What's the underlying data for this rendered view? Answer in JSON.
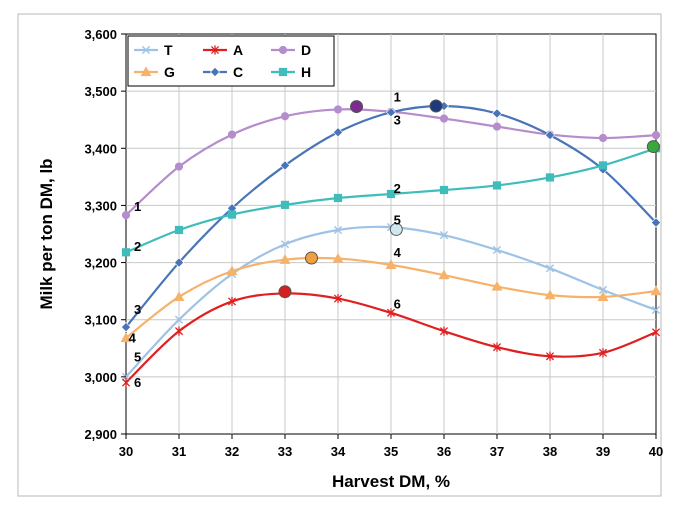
{
  "chart_data": {
    "type": "line",
    "title": "",
    "xlabel": "Harvest DM, %",
    "ylabel": "Milk per ton DM, lb",
    "xlim": [
      30,
      40
    ],
    "ylim": [
      2900,
      3600
    ],
    "x_ticks": [
      "30",
      "31",
      "32",
      "33",
      "34",
      "35",
      "36",
      "37",
      "38",
      "39",
      "40"
    ],
    "y_ticks": [
      "2,900",
      "3,000",
      "3,100",
      "3,200",
      "3,300",
      "3,400",
      "3,500",
      "3,600"
    ],
    "grid": true,
    "legend_position": "top-left",
    "x": [
      30,
      31,
      32,
      33,
      34,
      35,
      36,
      37,
      38,
      39,
      40
    ],
    "series": [
      {
        "name": "T",
        "color": "#9dc3e6",
        "marker": "x",
        "values": [
          3000,
          3100,
          3180,
          3232,
          3257,
          3262,
          3248,
          3222,
          3190,
          3152,
          3117
        ]
      },
      {
        "name": "A",
        "color": "#e02020",
        "marker": "star",
        "values": [
          2990,
          3080,
          3132,
          3146,
          3137,
          3112,
          3080,
          3052,
          3036,
          3042,
          3078
        ]
      },
      {
        "name": "D",
        "color": "#b58ccc",
        "marker": "circle",
        "values": [
          3283,
          3368,
          3424,
          3456,
          3468,
          3464,
          3452,
          3438,
          3424,
          3418,
          3423
        ]
      },
      {
        "name": "G",
        "color": "#f6b26b",
        "marker": "triangle",
        "values": [
          3068,
          3140,
          3185,
          3205,
          3207,
          3196,
          3178,
          3158,
          3143,
          3140,
          3150
        ]
      },
      {
        "name": "C",
        "color": "#4a74b8",
        "marker": "diamond",
        "values": [
          3087,
          3200,
          3295,
          3370,
          3428,
          3463,
          3474,
          3461,
          3423,
          3363,
          3270
        ]
      },
      {
        "name": "H",
        "color": "#3fbcbc",
        "marker": "square",
        "values": [
          3218,
          3257,
          3284,
          3301,
          3313,
          3320,
          3327,
          3335,
          3349,
          3370,
          3400
        ]
      }
    ],
    "highlight_points": [
      {
        "series": "D",
        "x": 34.35,
        "y": 3473,
        "color": "#7b2d8e"
      },
      {
        "series": "C",
        "x": 35.85,
        "y": 3474,
        "color": "#1f3a7a"
      },
      {
        "series": "H",
        "x": 39.95,
        "y": 3403,
        "color": "#3aa83a"
      },
      {
        "series": "T",
        "x": 35.1,
        "y": 3258,
        "color": "#cfe8ef"
      },
      {
        "series": "G",
        "x": 33.5,
        "y": 3208,
        "color": "#f0a040"
      },
      {
        "series": "A",
        "x": 33.0,
        "y": 3149,
        "color": "#d42020"
      }
    ],
    "annotations": [
      {
        "text": "1",
        "x": 30.15,
        "y": 3290
      },
      {
        "text": "2",
        "x": 30.15,
        "y": 3220
      },
      {
        "text": "3",
        "x": 30.15,
        "y": 3110
      },
      {
        "text": "4",
        "x": 30.05,
        "y": 3060
      },
      {
        "text": "5",
        "x": 30.15,
        "y": 3027
      },
      {
        "text": "6",
        "x": 30.15,
        "y": 2982
      },
      {
        "text": "1",
        "x": 35.05,
        "y": 3482
      },
      {
        "text": "3",
        "x": 35.05,
        "y": 3442
      },
      {
        "text": "2",
        "x": 35.05,
        "y": 3322
      },
      {
        "text": "5",
        "x": 35.05,
        "y": 3267
      },
      {
        "text": "4",
        "x": 35.05,
        "y": 3210
      },
      {
        "text": "6",
        "x": 35.05,
        "y": 3120
      }
    ]
  }
}
